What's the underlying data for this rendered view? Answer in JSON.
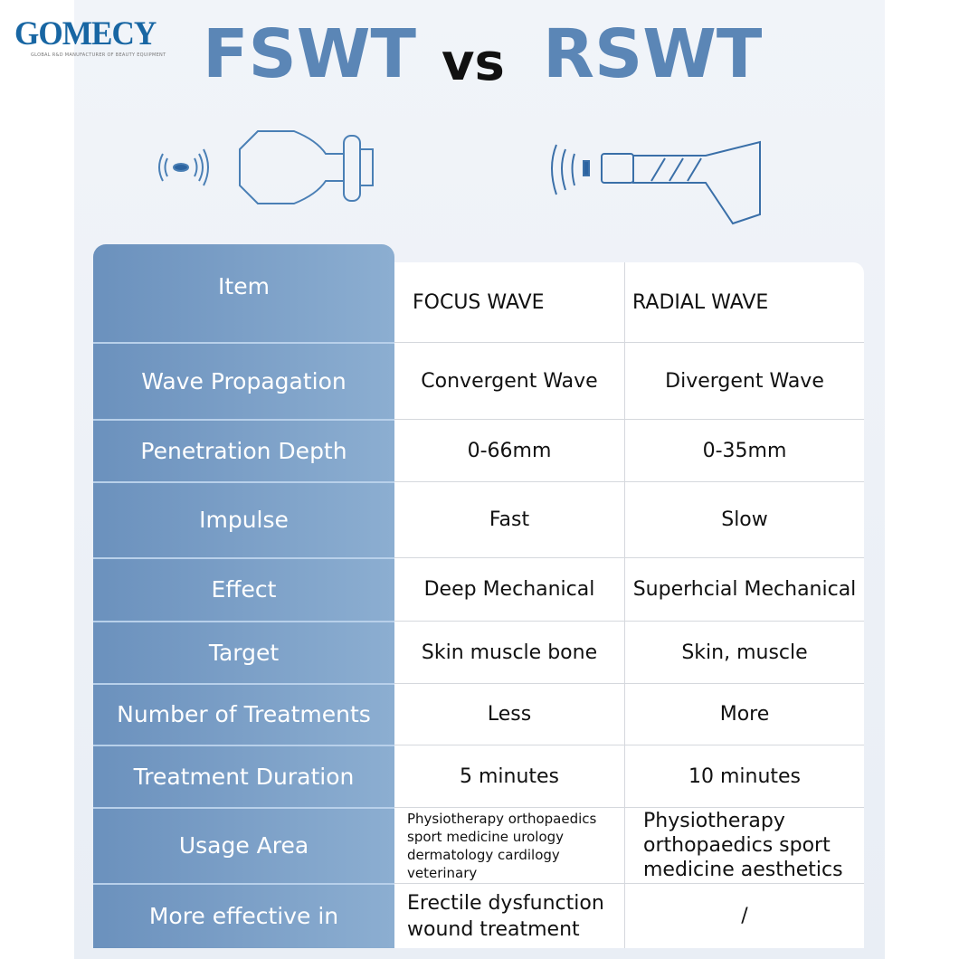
{
  "logo": {
    "name": "GOMECY",
    "tagline": "GLOBAL R&D MANUFACTURER OF BEAUTY EQUIPMENT",
    "accent": "#1866a3"
  },
  "title": {
    "left": "FSWT",
    "vs": "vs",
    "right": "RSWT"
  },
  "colors": {
    "header_blue": "#6b91bd",
    "title_blue": "#5b86b6"
  },
  "table": {
    "header": {
      "item": "Item",
      "col1": "FOCUS    WAVE",
      "col2": "RADIAL    WAVE"
    },
    "rows": [
      {
        "item": "Wave Propagation",
        "focus": "Convergent Wave",
        "radial": "Divergent Wave"
      },
      {
        "item": "Penetration Depth",
        "focus": "0-66mm",
        "radial": "0-35mm"
      },
      {
        "item": "Impulse",
        "focus": "Fast",
        "radial": "Slow"
      },
      {
        "item": "Effect",
        "focus": "Deep Mechanical",
        "radial": "Superhcial Mechanical"
      },
      {
        "item": "Target",
        "focus": "Skin muscle bone",
        "radial": "Skin, muscle"
      },
      {
        "item": "Number of Treatments",
        "focus": "Less",
        "radial": "More"
      },
      {
        "item": "Treatment Duration",
        "focus": "5 minutes",
        "radial": "10 minutes"
      },
      {
        "item": "Usage Area",
        "focus": "Physiotherapy orthopaedics sport medicine urology dermatology cardilogy veterinary",
        "radial": "Physiotherapy orthopaedics sport medicine aesthetics"
      },
      {
        "item": "More effective in",
        "focus": "Erectile dysfunction wound treatment",
        "radial": "/"
      }
    ]
  }
}
